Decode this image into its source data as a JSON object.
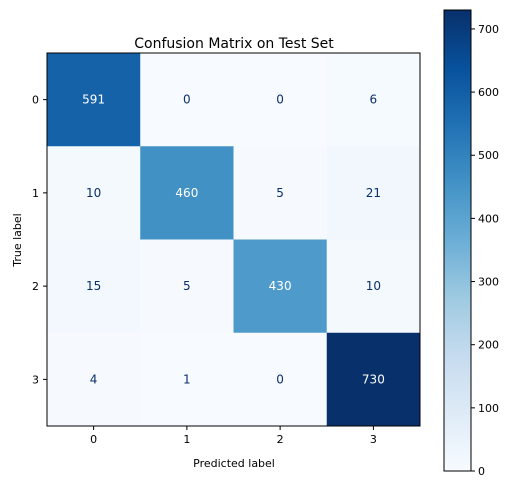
{
  "chart_data": {
    "type": "heatmap",
    "title": "Confusion Matrix on Test Set",
    "xlabel": "Predicted label",
    "ylabel": "True label",
    "x_categories": [
      "0",
      "1",
      "2",
      "3"
    ],
    "y_categories": [
      "0",
      "1",
      "2",
      "3"
    ],
    "values": [
      [
        591,
        0,
        0,
        6
      ],
      [
        10,
        460,
        5,
        21
      ],
      [
        15,
        5,
        430,
        10
      ],
      [
        4,
        1,
        0,
        730
      ]
    ],
    "colormap": "Blues",
    "vmin": 0,
    "vmax": 730,
    "colorbar_ticks": [
      "0",
      "100",
      "200",
      "300",
      "400",
      "500",
      "600",
      "700"
    ],
    "grid": false
  }
}
